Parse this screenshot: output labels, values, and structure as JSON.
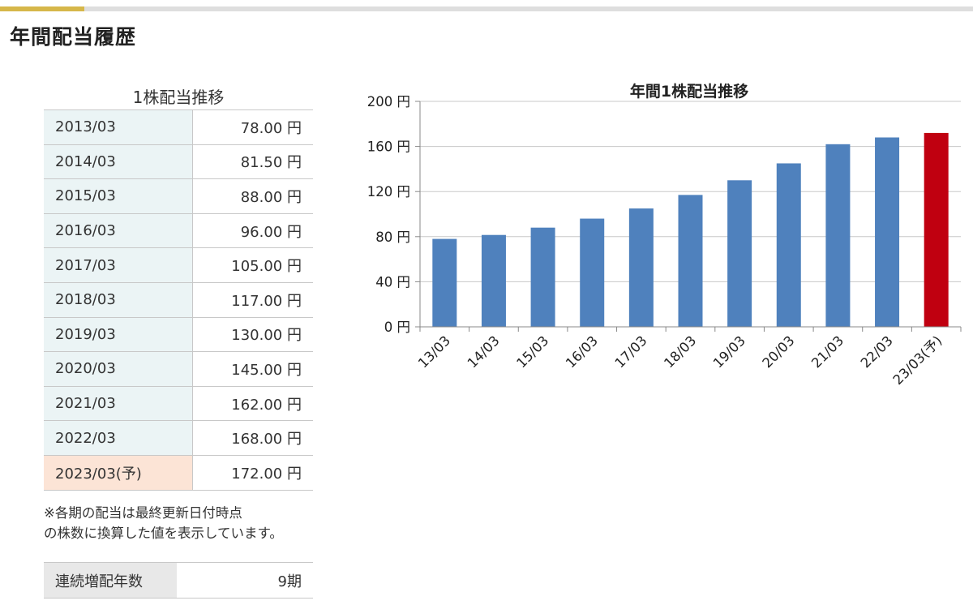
{
  "page": {
    "heading": "年間配当履歴"
  },
  "dividend_table": {
    "title": "1株配当推移",
    "rows": [
      {
        "year": "2013/03",
        "value": "78.00 円"
      },
      {
        "year": "2014/03",
        "value": "81.50 円"
      },
      {
        "year": "2015/03",
        "value": "88.00 円"
      },
      {
        "year": "2016/03",
        "value": "96.00 円"
      },
      {
        "year": "2017/03",
        "value": "105.00 円"
      },
      {
        "year": "2018/03",
        "value": "117.00 円"
      },
      {
        "year": "2019/03",
        "value": "130.00 円"
      },
      {
        "year": "2020/03",
        "value": "145.00 円"
      },
      {
        "year": "2021/03",
        "value": "162.00 円"
      },
      {
        "year": "2022/03",
        "value": "168.00 円"
      },
      {
        "year": "2023/03(予)",
        "value": "172.00 円"
      }
    ],
    "note_line1": "※各期の配当は最終更新日付時点",
    "note_line2": "の株数に換算した値を表示しています。"
  },
  "streak": {
    "label": "連続増配年数",
    "value": "9期"
  },
  "colors": {
    "bar": "#4f81bd",
    "forecast_bar": "#c00010",
    "accent": "#d6b74a"
  },
  "chart_data": {
    "type": "bar",
    "title": "年間1株配当推移",
    "xlabel": "",
    "ylabel": "",
    "categories": [
      "13/03",
      "14/03",
      "15/03",
      "16/03",
      "17/03",
      "18/03",
      "19/03",
      "20/03",
      "21/03",
      "22/03",
      "23/03(予)"
    ],
    "values": [
      78,
      81.5,
      88,
      96,
      105,
      117,
      130,
      145,
      162,
      168,
      172
    ],
    "forecast_index": 10,
    "ylim": [
      0,
      200
    ],
    "yticks": [
      0,
      40,
      80,
      120,
      160,
      200
    ],
    "ytick_labels": [
      "0 円",
      "40 円",
      "80 円",
      "120 円",
      "160 円",
      "200 円"
    ],
    "grid": true,
    "legend": "none"
  }
}
